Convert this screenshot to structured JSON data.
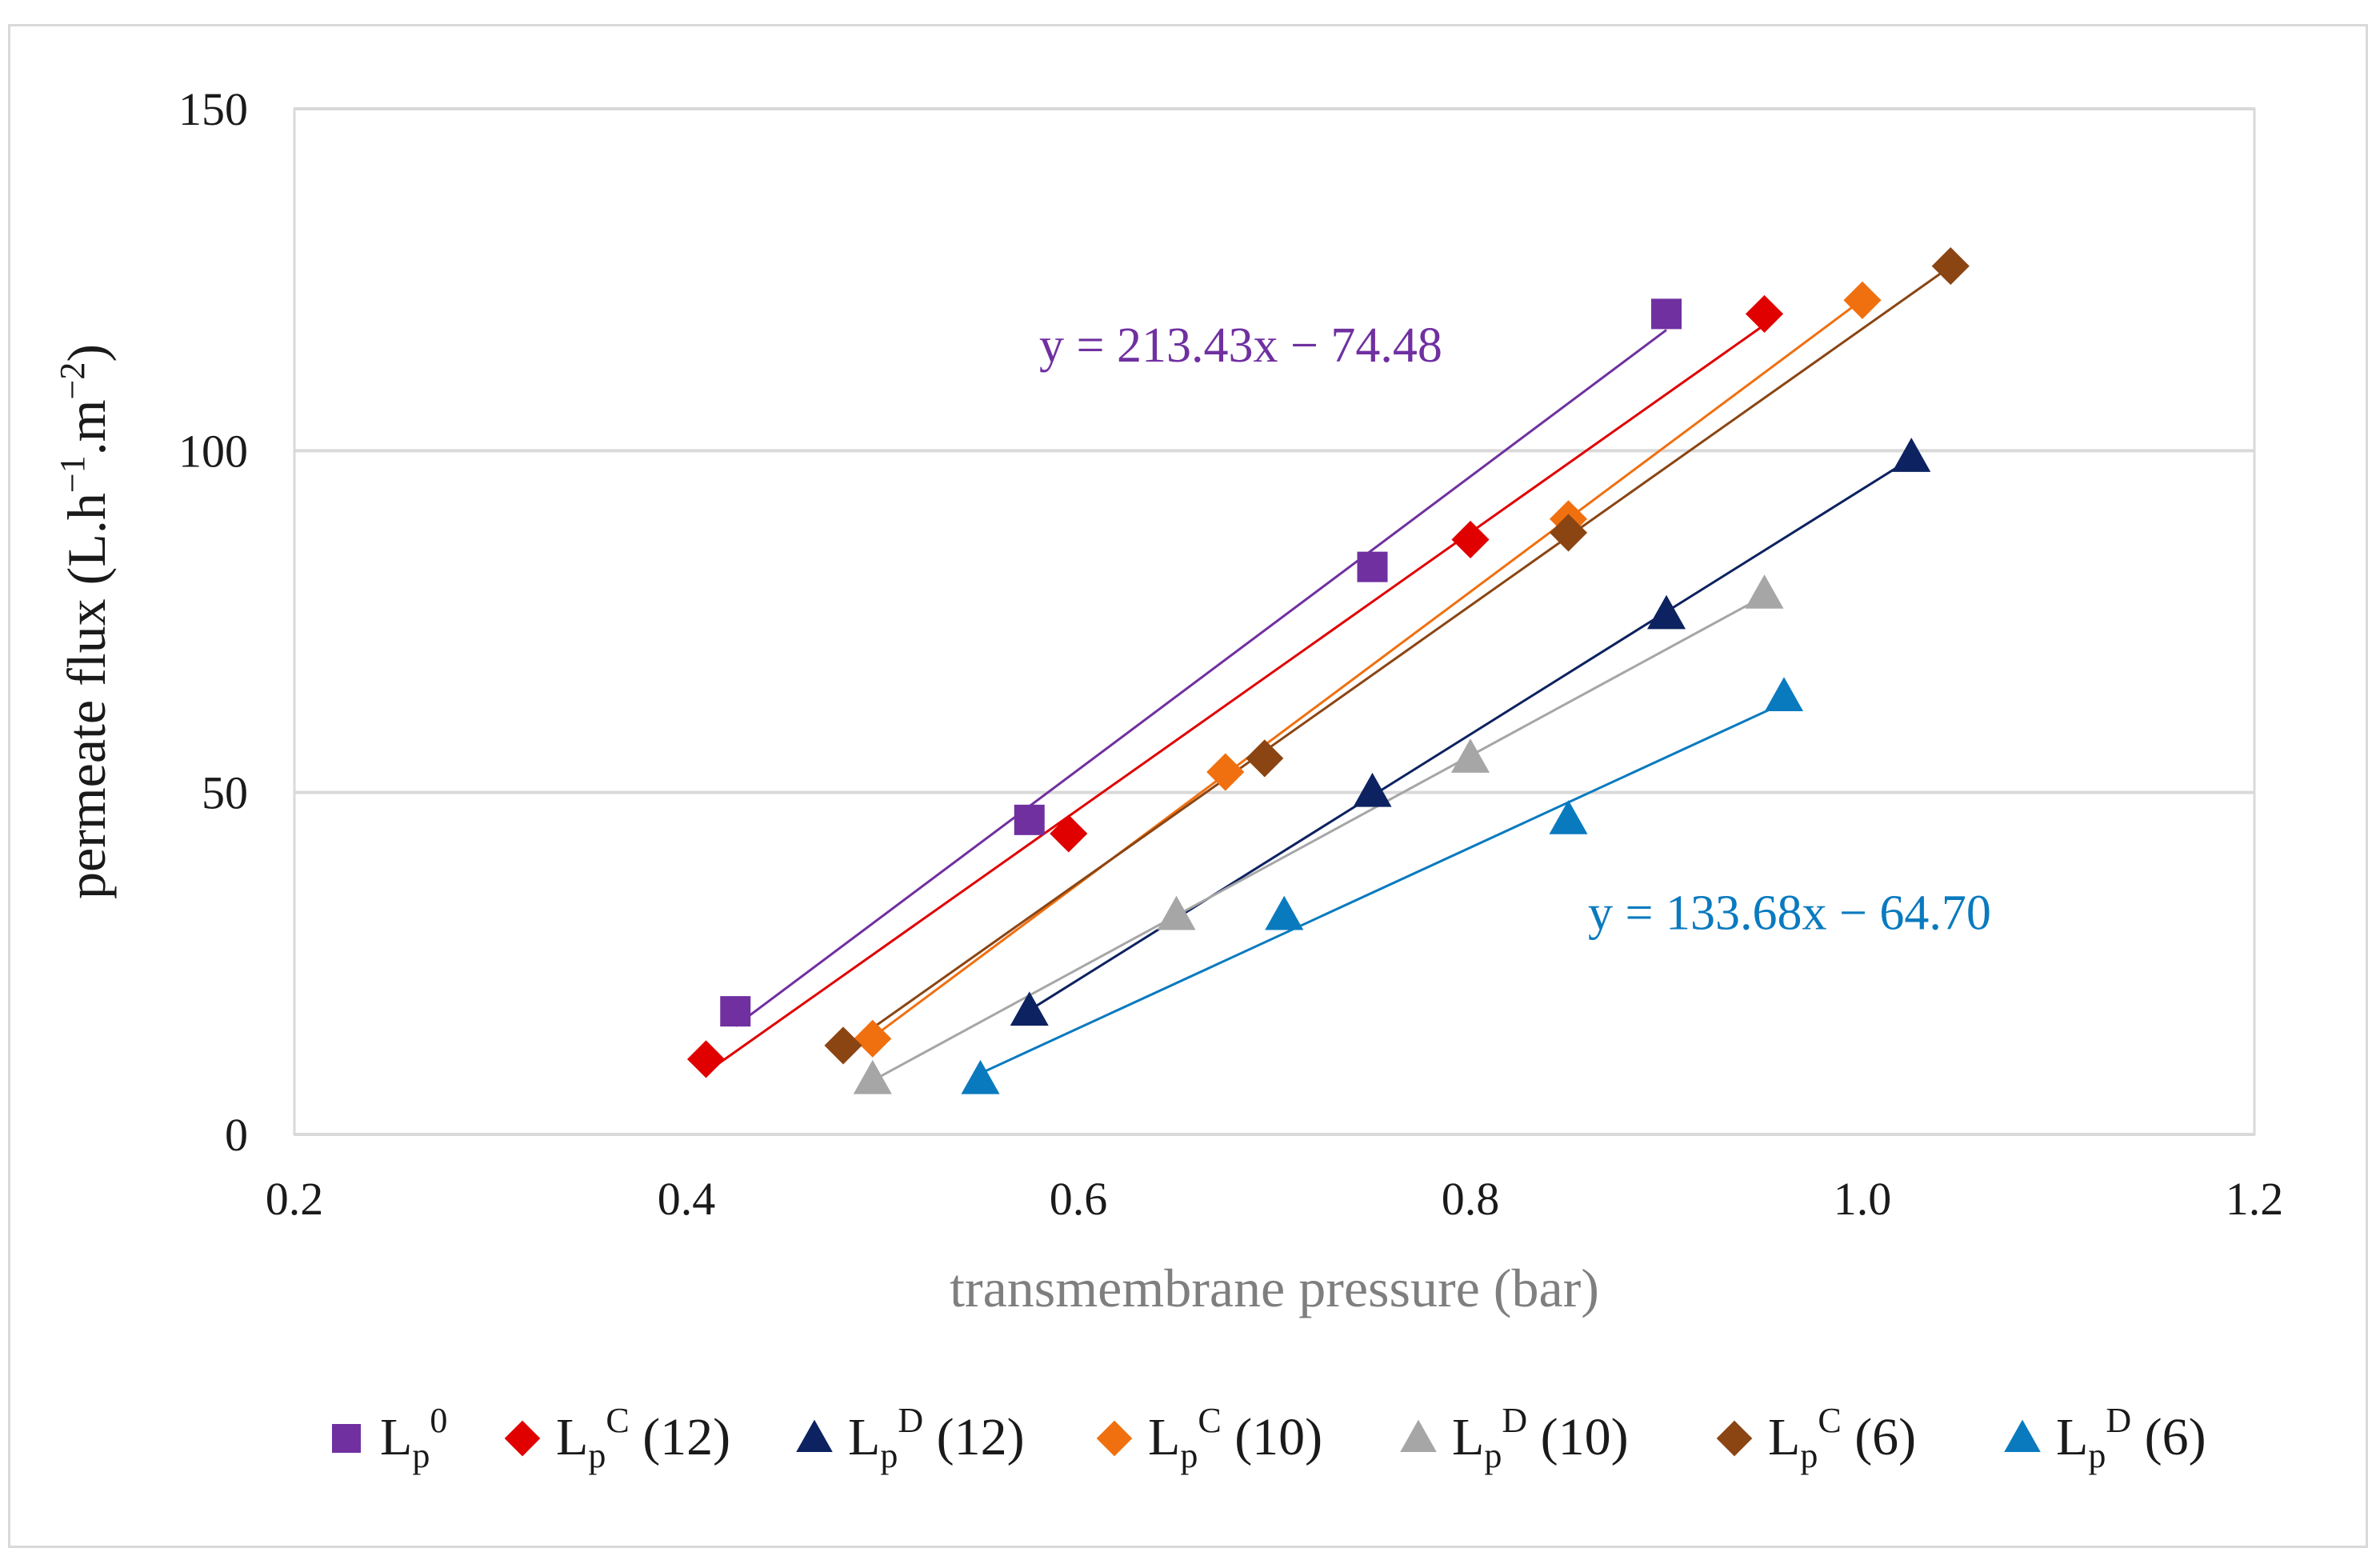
{
  "chart_data": {
    "type": "scatter",
    "xlabel": "transmembrane pressure (bar)",
    "ylabel": {
      "base": "permeate flux (L.h",
      "exp1": "−1",
      "mid": ".m",
      "exp2": "−2",
      "end": ")"
    },
    "xlim": [
      0.2,
      1.2
    ],
    "ylim": [
      0,
      150
    ],
    "x_ticks": [
      0.2,
      0.4,
      0.6,
      0.8,
      1.0,
      1.2
    ],
    "x_tick_labels": [
      "0.2",
      "0.4",
      "0.6",
      "0.8",
      "1.0",
      "1.2"
    ],
    "y_ticks": [
      0,
      50,
      100,
      150
    ],
    "y_tick_labels": [
      "0",
      "50",
      "100",
      "150"
    ],
    "grid": "horizontal",
    "legend_position": "bottom",
    "series": [
      {
        "name": "Lp0",
        "base": "L",
        "sub": "p",
        "sup": "0",
        "suffix": "",
        "color": "#7030a0",
        "marker": "square",
        "x": [
          0.425,
          0.575,
          0.75,
          0.9
        ],
        "y": [
          18,
          46,
          83,
          120
        ]
      },
      {
        "name": "LpC (12)",
        "base": "L",
        "sub": "p",
        "sup": "C",
        "suffix": " (12)",
        "color": "#e00000",
        "marker": "diamond",
        "x": [
          0.41,
          0.595,
          0.8,
          0.95
        ],
        "y": [
          11,
          44,
          87,
          120
        ]
      },
      {
        "name": "LpD (12)",
        "base": "L",
        "sub": "p",
        "sup": "D",
        "suffix": " (12)",
        "color": "#0d2260",
        "marker": "triangle",
        "x": [
          0.575,
          0.75,
          0.9,
          1.025
        ],
        "y": [
          18,
          50,
          76,
          99
        ]
      },
      {
        "name": "LpC (10)",
        "base": "L",
        "sub": "p",
        "sup": "C",
        "suffix": " (10)",
        "color": "#f07010",
        "marker": "diamond",
        "x": [
          0.495,
          0.675,
          0.85,
          1.0
        ],
        "y": [
          14,
          53,
          90,
          122
        ]
      },
      {
        "name": "LpD (10)",
        "base": "L",
        "sub": "p",
        "sup": "D",
        "suffix": " (10)",
        "color": "#a6a6a6",
        "marker": "triangle",
        "x": [
          0.495,
          0.65,
          0.8,
          0.95
        ],
        "y": [
          8,
          32,
          55,
          79
        ]
      },
      {
        "name": "LpC (6)",
        "base": "L",
        "sub": "p",
        "sup": "C",
        "suffix": " (6)",
        "color": "#8b4513",
        "marker": "diamond",
        "x": [
          0.48,
          0.695,
          0.85,
          1.045
        ],
        "y": [
          13,
          55,
          88,
          127
        ]
      },
      {
        "name": "LpD (6)",
        "base": "L",
        "sub": "p",
        "sup": "D",
        "suffix": " (6)",
        "color": "#0a7abf",
        "marker": "triangle",
        "x": [
          0.55,
          0.705,
          0.85,
          0.96
        ],
        "y": [
          8,
          32,
          46,
          64
        ]
      }
    ],
    "annotations": [
      {
        "text": "y = 213.43x − 74.48",
        "color": "#7030a0",
        "x": 0.58,
        "y": 113
      },
      {
        "text": "y = 133.68x − 64.70",
        "color": "#0a7abf",
        "x": 0.86,
        "y": 30
      }
    ]
  }
}
